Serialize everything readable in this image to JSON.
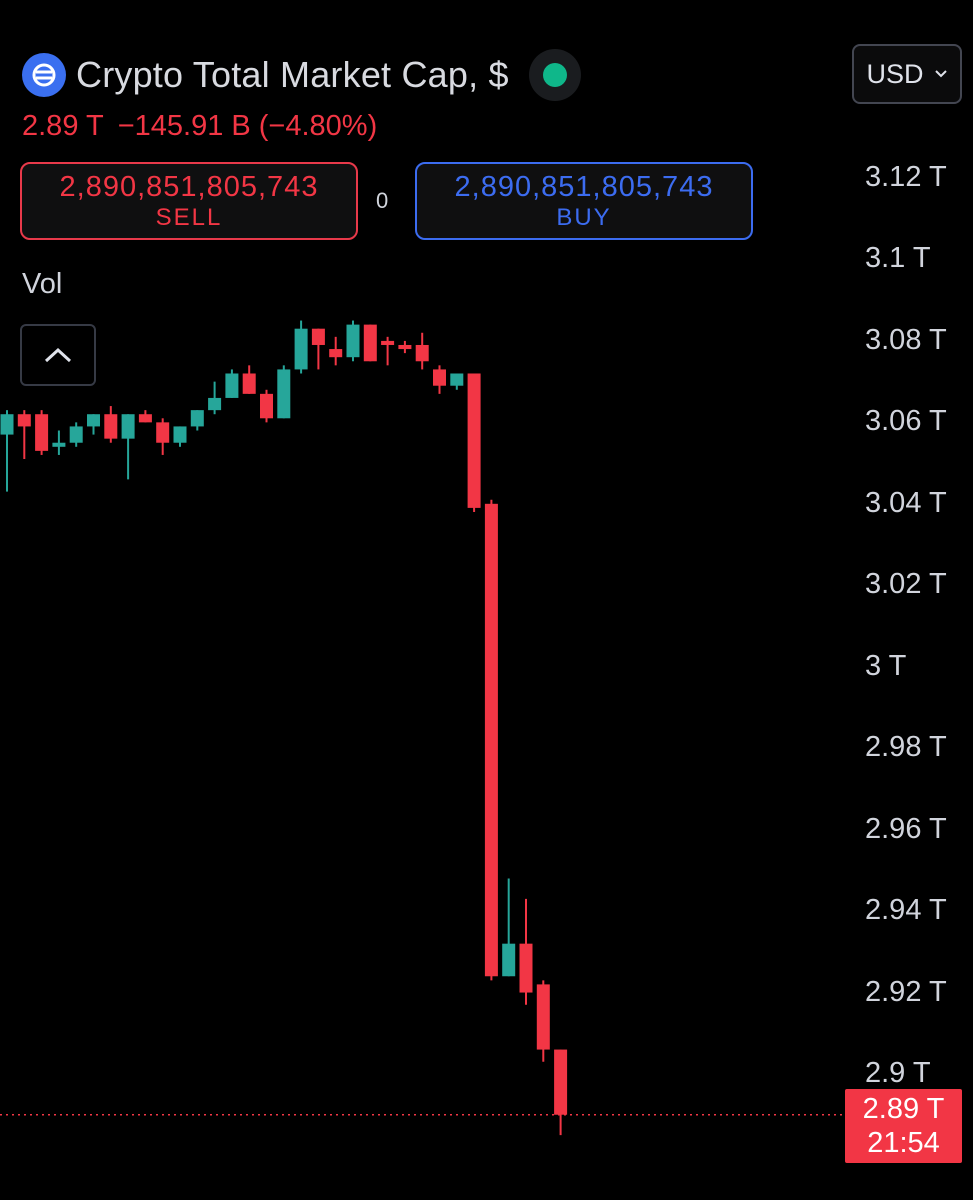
{
  "header": {
    "title": "Crypto Total Market Cap, $",
    "logo_icon": "crypto-market-cap-logo",
    "status_color": "#0fb78a"
  },
  "price": {
    "last": "2.89 T",
    "change": "−145.91 B",
    "change_pct": "(−4.80%)"
  },
  "trade": {
    "sell_value": "2,890,851,805,743",
    "sell_label": "SELL",
    "buy_value": "2,890,851,805,743",
    "buy_label": "BUY",
    "spread": "0"
  },
  "currency": {
    "selected": "USD"
  },
  "indicators": {
    "vol_label": "Vol"
  },
  "price_tag": {
    "value": "2.89 T",
    "countdown": "21:54"
  },
  "colors": {
    "up": "#26a69a",
    "down": "#f23645",
    "accent": "#3c6cf0",
    "background": "#000000"
  },
  "chart_data": {
    "type": "candlestick",
    "unit": "T USD",
    "y_axis": {
      "min": 2.88,
      "max": 3.12,
      "ticks": [
        "3.12 T",
        "3.1 T",
        "3.08 T",
        "3.06 T",
        "3.04 T",
        "3.02 T",
        "3 T",
        "2.98 T",
        "2.96 T",
        "2.94 T",
        "2.92 T",
        "2.9 T"
      ]
    },
    "current_price": 2.89,
    "grid": false,
    "candles": [
      {
        "o": 3.057,
        "h": 3.063,
        "l": 3.043,
        "c": 3.062
      },
      {
        "o": 3.062,
        "h": 3.063,
        "l": 3.051,
        "c": 3.059
      },
      {
        "o": 3.062,
        "h": 3.063,
        "l": 3.052,
        "c": 3.053
      },
      {
        "o": 3.054,
        "h": 3.058,
        "l": 3.052,
        "c": 3.055
      },
      {
        "o": 3.055,
        "h": 3.06,
        "l": 3.054,
        "c": 3.059
      },
      {
        "o": 3.059,
        "h": 3.062,
        "l": 3.057,
        "c": 3.062
      },
      {
        "o": 3.062,
        "h": 3.064,
        "l": 3.055,
        "c": 3.056
      },
      {
        "o": 3.056,
        "h": 3.062,
        "l": 3.046,
        "c": 3.062
      },
      {
        "o": 3.062,
        "h": 3.063,
        "l": 3.06,
        "c": 3.06
      },
      {
        "o": 3.06,
        "h": 3.061,
        "l": 3.052,
        "c": 3.055
      },
      {
        "o": 3.055,
        "h": 3.059,
        "l": 3.054,
        "c": 3.059
      },
      {
        "o": 3.059,
        "h": 3.063,
        "l": 3.058,
        "c": 3.063
      },
      {
        "o": 3.063,
        "h": 3.07,
        "l": 3.062,
        "c": 3.066
      },
      {
        "o": 3.066,
        "h": 3.073,
        "l": 3.066,
        "c": 3.072
      },
      {
        "o": 3.072,
        "h": 3.074,
        "l": 3.067,
        "c": 3.067
      },
      {
        "o": 3.067,
        "h": 3.068,
        "l": 3.06,
        "c": 3.061
      },
      {
        "o": 3.061,
        "h": 3.074,
        "l": 3.061,
        "c": 3.073
      },
      {
        "o": 3.073,
        "h": 3.085,
        "l": 3.072,
        "c": 3.083
      },
      {
        "o": 3.083,
        "h": 3.083,
        "l": 3.073,
        "c": 3.079
      },
      {
        "o": 3.078,
        "h": 3.081,
        "l": 3.074,
        "c": 3.076
      },
      {
        "o": 3.076,
        "h": 3.085,
        "l": 3.075,
        "c": 3.084
      },
      {
        "o": 3.084,
        "h": 3.084,
        "l": 3.075,
        "c": 3.075
      },
      {
        "o": 3.08,
        "h": 3.081,
        "l": 3.074,
        "c": 3.079
      },
      {
        "o": 3.079,
        "h": 3.08,
        "l": 3.077,
        "c": 3.078
      },
      {
        "o": 3.079,
        "h": 3.082,
        "l": 3.073,
        "c": 3.075
      },
      {
        "o": 3.073,
        "h": 3.074,
        "l": 3.067,
        "c": 3.069
      },
      {
        "o": 3.069,
        "h": 3.072,
        "l": 3.068,
        "c": 3.072
      },
      {
        "o": 3.072,
        "h": 3.072,
        "l": 3.038,
        "c": 3.039
      },
      {
        "o": 3.04,
        "h": 3.041,
        "l": 2.923,
        "c": 2.924
      },
      {
        "o": 2.924,
        "h": 2.948,
        "l": 2.924,
        "c": 2.932
      },
      {
        "o": 2.932,
        "h": 2.943,
        "l": 2.917,
        "c": 2.92
      },
      {
        "o": 2.922,
        "h": 2.923,
        "l": 2.903,
        "c": 2.906
      },
      {
        "o": 2.906,
        "h": 2.906,
        "l": 2.885,
        "c": 2.89
      }
    ]
  }
}
